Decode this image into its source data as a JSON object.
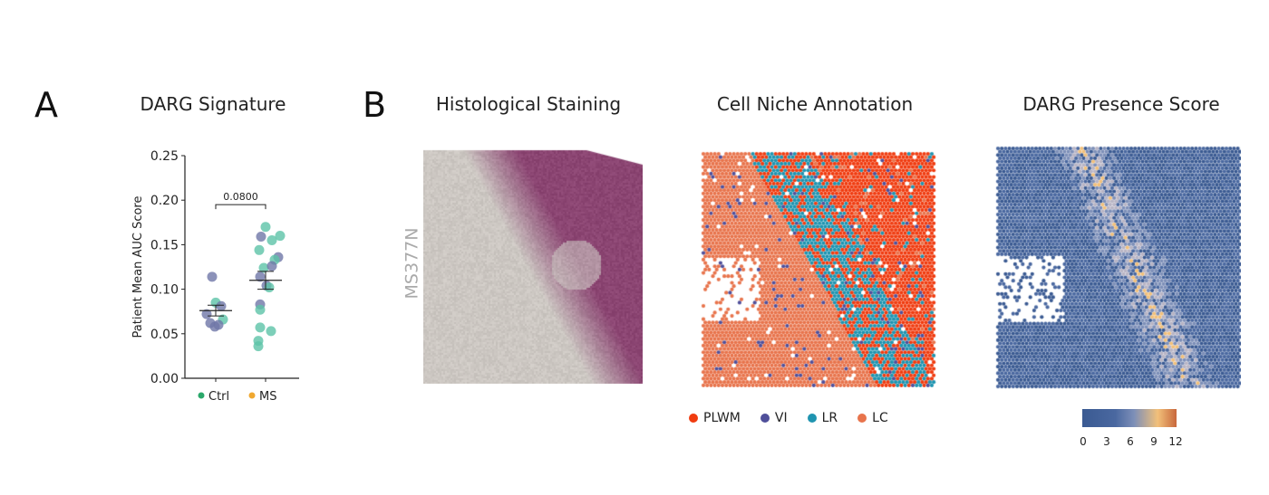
{
  "panels": {
    "a_letter": "A",
    "b_letter": "B",
    "a_title": "DARG Signature",
    "histology_title": "Histological Staining",
    "niche_title": "Cell Niche Annotation",
    "presence_title": "DARG Presence Score",
    "sample_label": "MS377N"
  },
  "niche_legend": [
    {
      "label": "PLWM",
      "color": "#f03c10"
    },
    {
      "label": "VI",
      "color": "#4f4f9a"
    },
    {
      "label": "LR",
      "color": "#1f94b0"
    },
    {
      "label": "LC",
      "color": "#e8744c"
    }
  ],
  "colorbar": {
    "ticks": [
      "0",
      "3",
      "6",
      "9",
      "12"
    ],
    "colors": [
      "#3a5a92",
      "#4a68a0",
      "#7d8fb8",
      "#f2c07a",
      "#c8683c"
    ]
  },
  "chart_data": {
    "type": "scatter",
    "title": "DARG Signature",
    "ylabel": "Patient Mean AUC Score",
    "xlabel": "",
    "ylim": [
      0,
      0.25
    ],
    "yticks": [
      "0.00",
      "0.05",
      "0.10",
      "0.15",
      "0.20",
      "0.25"
    ],
    "categories": [
      "Ctrl",
      "MS"
    ],
    "legend": [
      {
        "label": "Ctrl",
        "color": "#2aa86a"
      },
      {
        "label": "MS",
        "color": "#f0a830"
      }
    ],
    "legend_placement": "bottom",
    "point_colors": {
      "teal": "#5cc3a8",
      "purple": "#6f77a8"
    },
    "groups": [
      {
        "name": "Ctrl",
        "mean": 0.076,
        "sem_low": 0.07,
        "sem_high": 0.082,
        "points": [
          {
            "y": 0.114,
            "c": "purple"
          },
          {
            "y": 0.085,
            "c": "teal"
          },
          {
            "y": 0.081,
            "c": "purple"
          },
          {
            "y": 0.072,
            "c": "purple"
          },
          {
            "y": 0.066,
            "c": "teal"
          },
          {
            "y": 0.062,
            "c": "purple"
          },
          {
            "y": 0.06,
            "c": "purple"
          },
          {
            "y": 0.058,
            "c": "purple"
          }
        ]
      },
      {
        "name": "MS",
        "mean": 0.11,
        "sem_low": 0.1,
        "sem_high": 0.12,
        "points": [
          {
            "y": 0.17,
            "c": "teal"
          },
          {
            "y": 0.159,
            "c": "purple"
          },
          {
            "y": 0.155,
            "c": "teal"
          },
          {
            "y": 0.16,
            "c": "teal"
          },
          {
            "y": 0.144,
            "c": "teal"
          },
          {
            "y": 0.136,
            "c": "purple"
          },
          {
            "y": 0.133,
            "c": "teal"
          },
          {
            "y": 0.124,
            "c": "teal"
          },
          {
            "y": 0.126,
            "c": "purple"
          },
          {
            "y": 0.114,
            "c": "purple"
          },
          {
            "y": 0.104,
            "c": "purple"
          },
          {
            "y": 0.102,
            "c": "teal"
          },
          {
            "y": 0.083,
            "c": "purple"
          },
          {
            "y": 0.077,
            "c": "teal"
          },
          {
            "y": 0.057,
            "c": "teal"
          },
          {
            "y": 0.053,
            "c": "teal"
          },
          {
            "y": 0.042,
            "c": "teal"
          },
          {
            "y": 0.036,
            "c": "teal"
          }
        ]
      }
    ],
    "comparison": {
      "label": "0.0800",
      "groups": [
        "Ctrl",
        "MS"
      ],
      "y": 0.195
    }
  }
}
